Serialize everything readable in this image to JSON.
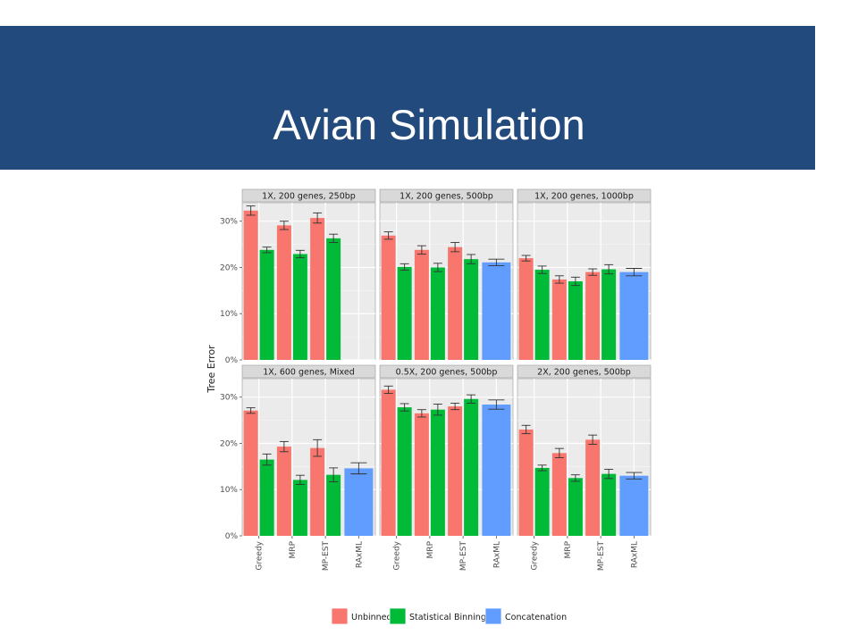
{
  "slide": {
    "title": "Avian Simulation"
  },
  "colors": {
    "banner": "#234a7c",
    "title_text": "#ffffff",
    "panel_bg": "#ebebeb",
    "strip_bg": "#d9d9d9",
    "series": {
      "Unbinned": "#f8766d",
      "Statistical Binning": "#00ba38",
      "Concatenation": "#619cff"
    }
  },
  "chart_data": {
    "type": "bar",
    "ylabel": "Tree Error",
    "xlabel": "",
    "ylim": [
      0,
      34
    ],
    "yticks": [
      0,
      10,
      20,
      30
    ],
    "ytick_labels": [
      "0%",
      "10%",
      "20%",
      "30%"
    ],
    "grid": true,
    "legend_position": "bottom",
    "categories": [
      "Greedy",
      "MRP",
      "MP-EST",
      "RAxML"
    ],
    "series_names": [
      "Unbinned",
      "Statistical Binning",
      "Concatenation"
    ],
    "panels": [
      {
        "title": "1X, 200 genes, 250bp",
        "bars": [
          {
            "category": "Greedy",
            "series": "Unbinned",
            "value": 32.3,
            "err": 1.0
          },
          {
            "category": "Greedy",
            "series": "Statistical Binning",
            "value": 23.8,
            "err": 0.6
          },
          {
            "category": "MRP",
            "series": "Unbinned",
            "value": 29.1,
            "err": 0.9
          },
          {
            "category": "MRP",
            "series": "Statistical Binning",
            "value": 22.9,
            "err": 0.8
          },
          {
            "category": "MP-EST",
            "series": "Unbinned",
            "value": 30.7,
            "err": 1.1
          },
          {
            "category": "MP-EST",
            "series": "Statistical Binning",
            "value": 26.3,
            "err": 0.9
          }
        ]
      },
      {
        "title": "1X, 200 genes, 500bp",
        "bars": [
          {
            "category": "Greedy",
            "series": "Unbinned",
            "value": 26.9,
            "err": 0.8
          },
          {
            "category": "Greedy",
            "series": "Statistical Binning",
            "value": 20.1,
            "err": 0.7
          },
          {
            "category": "MRP",
            "series": "Unbinned",
            "value": 23.8,
            "err": 0.9
          },
          {
            "category": "MRP",
            "series": "Statistical Binning",
            "value": 20.0,
            "err": 0.9
          },
          {
            "category": "MP-EST",
            "series": "Unbinned",
            "value": 24.4,
            "err": 1.0
          },
          {
            "category": "MP-EST",
            "series": "Statistical Binning",
            "value": 21.8,
            "err": 1.0
          },
          {
            "category": "RAxML",
            "series": "Concatenation",
            "value": 21.1,
            "err": 0.7
          }
        ]
      },
      {
        "title": "1X, 200 genes, 1000bp",
        "bars": [
          {
            "category": "Greedy",
            "series": "Unbinned",
            "value": 22.0,
            "err": 0.6
          },
          {
            "category": "Greedy",
            "series": "Statistical Binning",
            "value": 19.5,
            "err": 0.8
          },
          {
            "category": "MRP",
            "series": "Unbinned",
            "value": 17.4,
            "err": 0.8
          },
          {
            "category": "MRP",
            "series": "Statistical Binning",
            "value": 17.0,
            "err": 0.9
          },
          {
            "category": "MP-EST",
            "series": "Unbinned",
            "value": 19.0,
            "err": 0.7
          },
          {
            "category": "MP-EST",
            "series": "Statistical Binning",
            "value": 19.6,
            "err": 1.0
          },
          {
            "category": "RAxML",
            "series": "Concatenation",
            "value": 19.0,
            "err": 0.8
          }
        ]
      },
      {
        "title": "1X, 600 genes, Mixed",
        "bars": [
          {
            "category": "Greedy",
            "series": "Unbinned",
            "value": 27.1,
            "err": 0.6
          },
          {
            "category": "Greedy",
            "series": "Statistical Binning",
            "value": 16.5,
            "err": 1.2
          },
          {
            "category": "MRP",
            "series": "Unbinned",
            "value": 19.3,
            "err": 1.1
          },
          {
            "category": "MRP",
            "series": "Statistical Binning",
            "value": 12.1,
            "err": 1.0
          },
          {
            "category": "MP-EST",
            "series": "Unbinned",
            "value": 19.0,
            "err": 1.8
          },
          {
            "category": "MP-EST",
            "series": "Statistical Binning",
            "value": 13.2,
            "err": 1.5
          },
          {
            "category": "RAxML",
            "series": "Concatenation",
            "value": 14.6,
            "err": 1.2
          }
        ]
      },
      {
        "title": "0.5X, 200 genes, 500bp",
        "bars": [
          {
            "category": "Greedy",
            "series": "Unbinned",
            "value": 31.6,
            "err": 0.8
          },
          {
            "category": "Greedy",
            "series": "Statistical Binning",
            "value": 27.8,
            "err": 0.8
          },
          {
            "category": "MRP",
            "series": "Unbinned",
            "value": 26.5,
            "err": 0.8
          },
          {
            "category": "MRP",
            "series": "Statistical Binning",
            "value": 27.3,
            "err": 1.2
          },
          {
            "category": "MP-EST",
            "series": "Unbinned",
            "value": 28.0,
            "err": 0.7
          },
          {
            "category": "MP-EST",
            "series": "Statistical Binning",
            "value": 29.6,
            "err": 0.9
          },
          {
            "category": "RAxML",
            "series": "Concatenation",
            "value": 28.4,
            "err": 1.0
          }
        ]
      },
      {
        "title": "2X, 200 genes, 500bp",
        "bars": [
          {
            "category": "Greedy",
            "series": "Unbinned",
            "value": 23.0,
            "err": 0.9
          },
          {
            "category": "Greedy",
            "series": "Statistical Binning",
            "value": 14.7,
            "err": 0.6
          },
          {
            "category": "MRP",
            "series": "Unbinned",
            "value": 17.9,
            "err": 1.0
          },
          {
            "category": "MRP",
            "series": "Statistical Binning",
            "value": 12.5,
            "err": 0.7
          },
          {
            "category": "MP-EST",
            "series": "Unbinned",
            "value": 20.8,
            "err": 1.0
          },
          {
            "category": "MP-EST",
            "series": "Statistical Binning",
            "value": 13.4,
            "err": 1.0
          },
          {
            "category": "RAxML",
            "series": "Concatenation",
            "value": 13.0,
            "err": 0.7
          }
        ]
      }
    ]
  }
}
